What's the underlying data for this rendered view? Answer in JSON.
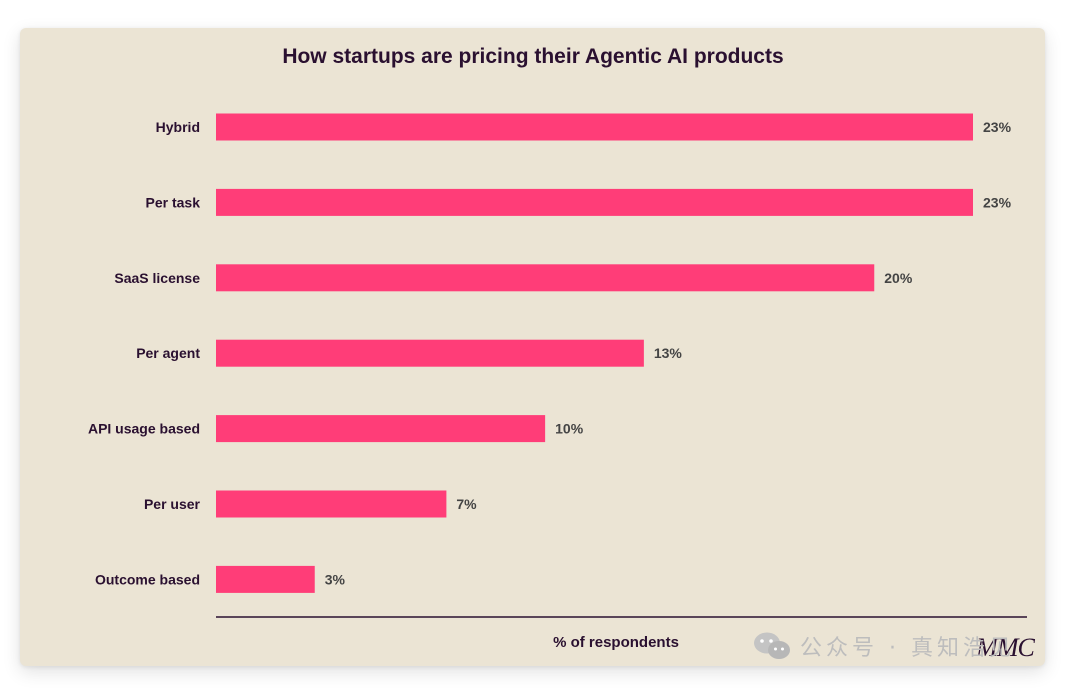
{
  "chart_data": {
    "type": "bar",
    "orientation": "horizontal",
    "title": "How startups are pricing their Agentic AI products",
    "categories": [
      "Hybrid",
      "Per task",
      "SaaS license",
      "Per agent",
      "API usage based",
      "Per user",
      "Outcome based"
    ],
    "values": [
      23,
      23,
      20,
      13,
      10,
      7,
      3
    ],
    "value_labels": [
      "23%",
      "23%",
      "20%",
      "13%",
      "10%",
      "7%",
      "3%"
    ],
    "xlabel": "% of respondents",
    "ylabel": "",
    "xlim": [
      0,
      25
    ],
    "grid": false,
    "legend": "none",
    "colors": {
      "bar": "#ff3d78",
      "text": "#2a1030",
      "label_text": "#444444",
      "axis": "#2a1030",
      "background": "#ebe4d4"
    }
  },
  "branding": {
    "logo_text": "MMC"
  },
  "watermark": {
    "text": "公众号 · 真知浩见"
  }
}
